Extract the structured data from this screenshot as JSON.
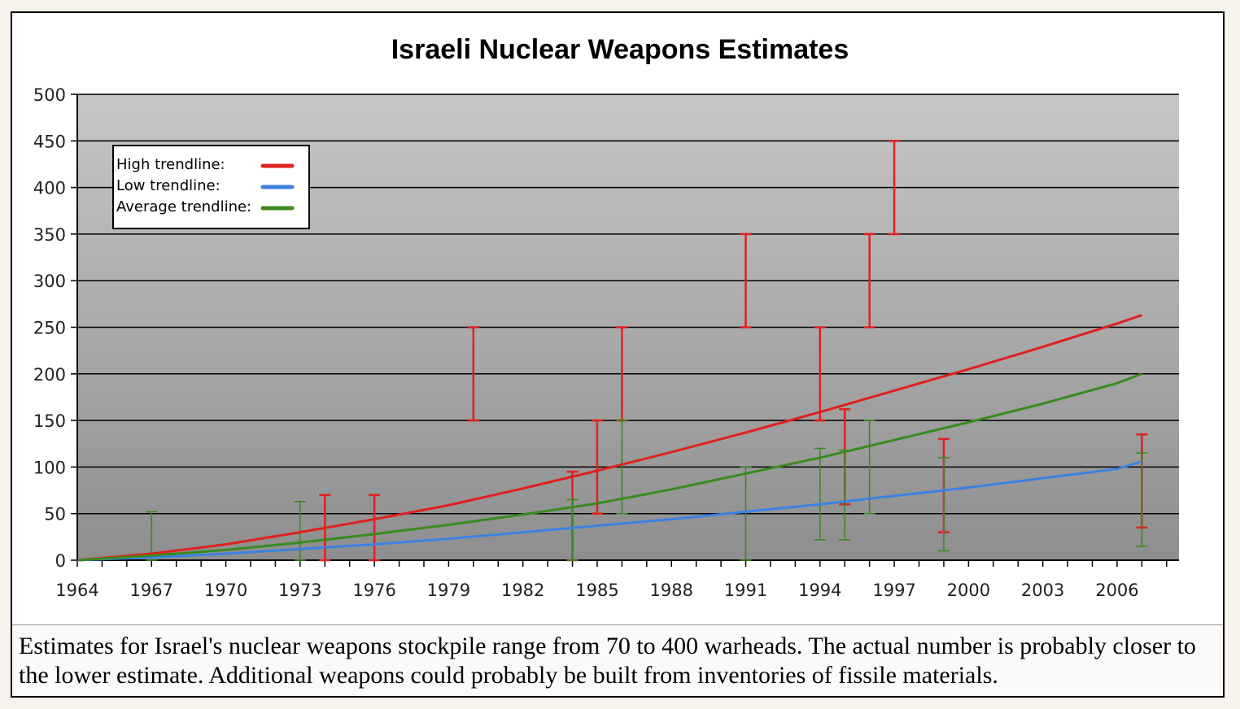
{
  "caption": "Estimates for Israel's nuclear weapons stockpile range from 70 to 400 warheads. The actual number is probably closer to the lower estimate. Additional weapons could probably be built from inventories of fissile materials.",
  "chart_data": {
    "type": "line",
    "title": "Israeli Nuclear Weapons Estimates",
    "xlabel": "",
    "ylabel": "",
    "xlim": [
      1964,
      2007
    ],
    "ylim": [
      0,
      500
    ],
    "x_ticks": [
      "1964",
      "1967",
      "1970",
      "1973",
      "1976",
      "1979",
      "1982",
      "1985",
      "1988",
      "1991",
      "1994",
      "1997",
      "2000",
      "2003",
      "2006"
    ],
    "y_ticks": [
      "0",
      "50",
      "100",
      "150",
      "200",
      "250",
      "300",
      "350",
      "400",
      "450",
      "500"
    ],
    "grid": true,
    "legend_position": "top-left",
    "background": "gradient-gray",
    "legend": [
      {
        "label": "High trendline:",
        "color": "#e02020"
      },
      {
        "label": "Low trendline:",
        "color": "#3b82e0"
      },
      {
        "label": "Average trendline:",
        "color": "#3a8a20"
      }
    ],
    "series": [
      {
        "name": "High trendline:",
        "color": "#e02020",
        "x": [
          1964,
          1967,
          1970,
          1973,
          1976,
          1979,
          1982,
          1985,
          1988,
          1991,
          1994,
          1997,
          2000,
          2003,
          2006,
          2007
        ],
        "y": [
          0,
          7,
          17,
          30,
          44,
          59,
          77,
          96,
          116,
          137,
          159,
          182,
          205,
          229,
          254,
          263
        ]
      },
      {
        "name": "Low trendline:",
        "color": "#3b82e0",
        "x": [
          1964,
          1967,
          1970,
          1973,
          1976,
          1979,
          1982,
          1985,
          1988,
          1991,
          1994,
          1997,
          2000,
          2003,
          2006,
          2007
        ],
        "y": [
          0,
          3,
          7,
          12,
          17,
          23,
          30,
          37,
          44,
          52,
          60,
          69,
          78,
          88,
          98,
          106
        ]
      },
      {
        "name": "Average trendline:",
        "color": "#3a8a20",
        "x": [
          1964,
          1967,
          1970,
          1973,
          1976,
          1979,
          1982,
          1985,
          1988,
          1991,
          1994,
          1997,
          2000,
          2003,
          2006,
          2007
        ],
        "y": [
          0,
          5,
          11,
          19,
          28,
          38,
          49,
          61,
          76,
          93,
          110,
          129,
          148,
          168,
          190,
          200
        ]
      }
    ],
    "error_bars": [
      {
        "x": 1967,
        "low": 0,
        "high": 52,
        "color": "#3a8a20"
      },
      {
        "x": 1973,
        "low": 0,
        "high": 63,
        "color": "#3a8a20"
      },
      {
        "x": 1974,
        "low": 0,
        "high": 70,
        "color": "#e02020"
      },
      {
        "x": 1976,
        "low": 0,
        "high": 70,
        "color": "#e02020"
      },
      {
        "x": 1980,
        "low": 150,
        "high": 250,
        "color": "#e02020"
      },
      {
        "x": 1984,
        "low": 0,
        "high": 95,
        "color": "#e02020"
      },
      {
        "x": 1984,
        "low": 0,
        "high": 65,
        "color": "#3a8a20"
      },
      {
        "x": 1985,
        "low": 50,
        "high": 150,
        "color": "#e02020"
      },
      {
        "x": 1986,
        "low": 150,
        "high": 250,
        "color": "#e02020"
      },
      {
        "x": 1986,
        "low": 50,
        "high": 150,
        "color": "#3a8a20"
      },
      {
        "x": 1991,
        "low": 250,
        "high": 350,
        "color": "#e02020"
      },
      {
        "x": 1991,
        "low": 0,
        "high": 100,
        "color": "#3a8a20"
      },
      {
        "x": 1994,
        "low": 150,
        "high": 250,
        "color": "#e02020"
      },
      {
        "x": 1994,
        "low": 22,
        "high": 120,
        "color": "#3a8a20"
      },
      {
        "x": 1995,
        "low": 60,
        "high": 162,
        "color": "#e02020"
      },
      {
        "x": 1995,
        "low": 22,
        "high": 118,
        "color": "#3a8a20"
      },
      {
        "x": 1996,
        "low": 250,
        "high": 350,
        "color": "#e02020"
      },
      {
        "x": 1996,
        "low": 50,
        "high": 150,
        "color": "#3a8a20"
      },
      {
        "x": 1997,
        "low": 350,
        "high": 450,
        "color": "#e02020"
      },
      {
        "x": 1999,
        "low": 30,
        "high": 130,
        "color": "#e02020"
      },
      {
        "x": 1999,
        "low": 10,
        "high": 110,
        "color": "#3a8a20"
      },
      {
        "x": 2007,
        "low": 35,
        "high": 135,
        "color": "#e02020"
      },
      {
        "x": 2007,
        "low": 15,
        "high": 115,
        "color": "#3a8a20"
      }
    ]
  }
}
